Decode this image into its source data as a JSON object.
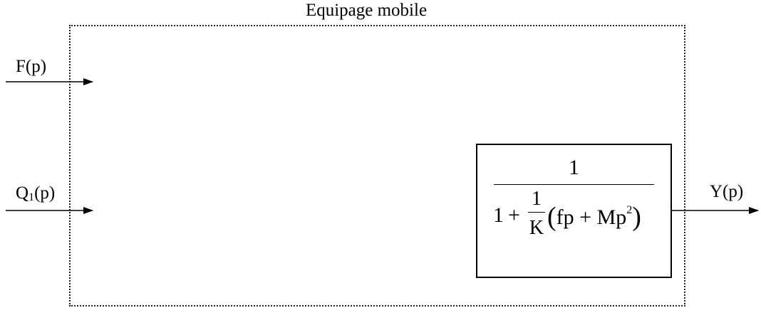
{
  "diagram": {
    "title": "Equipage mobile",
    "inputs": [
      {
        "label": "F(p)"
      },
      {
        "label_main": "Q",
        "label_sub": "1",
        "label_tail": "(p)"
      }
    ],
    "output": {
      "label": "Y(p)"
    },
    "transfer_function": {
      "numerator": "1",
      "denominator": {
        "one": "1",
        "plus": "+",
        "gain_numerator": "1",
        "gain_denominator": "K",
        "open_paren": "(",
        "expr_a": "fp + Mp",
        "exponent": "2",
        "close_paren": ")"
      }
    }
  }
}
